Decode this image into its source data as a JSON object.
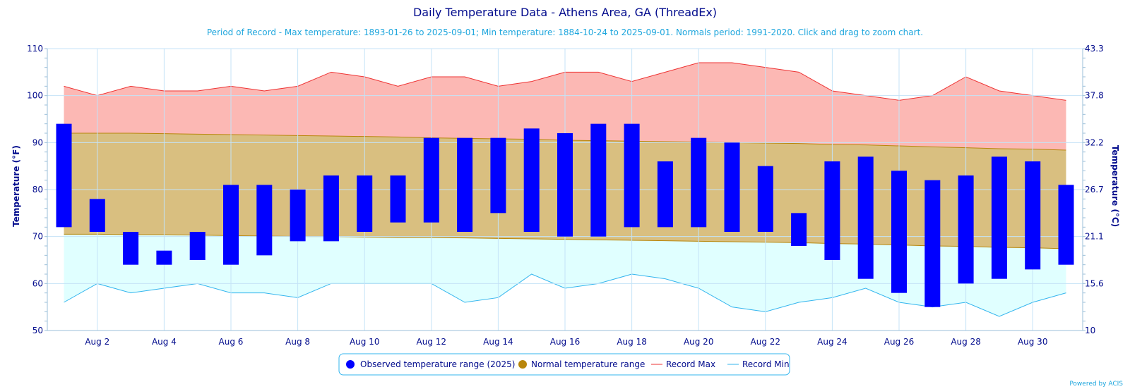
{
  "title": "Daily Temperature Data - Athens Area, GA (ThreadEx)",
  "subtitle": "Period of Record - Max temperature: 1893-01-26 to 2025-09-01; Min temperature: 1884-10-24 to 2025-09-01. Normals period: 1991-2020. Click and drag to zoom chart.",
  "credit": "Powered by ACIS",
  "colors": {
    "observed": "#0000ff",
    "normal_fill": "#d9bf80",
    "normal_line": "#b8860b",
    "record_max_fill": "#fcb8b4",
    "record_max_line": "#ee3333",
    "record_min_fill": "#e0ffff",
    "record_min_line": "#33b5ee",
    "grid": "#c4e3f7",
    "text": "#000a8c"
  },
  "chart_data": {
    "type": "bar",
    "title": "Daily Temperature Data - Athens Area, GA (ThreadEx)",
    "ylabel_left": "Temperature (°F)",
    "ylabel_right": "Temperature (°C)",
    "ylim": [
      50,
      110
    ],
    "yticks_left": [
      "50",
      "60",
      "70",
      "80",
      "90",
      "100",
      "110"
    ],
    "yticks_right": [
      "10",
      "15.6",
      "21.1",
      "26.7",
      "32.2",
      "37.8",
      "43.3"
    ],
    "days": [
      1,
      2,
      3,
      4,
      5,
      6,
      7,
      8,
      9,
      10,
      11,
      12,
      13,
      14,
      15,
      16,
      17,
      18,
      19,
      20,
      21,
      22,
      23,
      24,
      25,
      26,
      27,
      28,
      29,
      30,
      31
    ],
    "xtick_labels": [
      {
        "day": 2,
        "label": "Aug 2"
      },
      {
        "day": 4,
        "label": "Aug 4"
      },
      {
        "day": 6,
        "label": "Aug 6"
      },
      {
        "day": 8,
        "label": "Aug 8"
      },
      {
        "day": 10,
        "label": "Aug 10"
      },
      {
        "day": 12,
        "label": "Aug 12"
      },
      {
        "day": 14,
        "label": "Aug 14"
      },
      {
        "day": 16,
        "label": "Aug 16"
      },
      {
        "day": 18,
        "label": "Aug 18"
      },
      {
        "day": 20,
        "label": "Aug 20"
      },
      {
        "day": 22,
        "label": "Aug 22"
      },
      {
        "day": 24,
        "label": "Aug 24"
      },
      {
        "day": 26,
        "label": "Aug 26"
      },
      {
        "day": 28,
        "label": "Aug 28"
      },
      {
        "day": 30,
        "label": "Aug 30"
      }
    ],
    "series": [
      {
        "name": "Observed temperature range (2025)",
        "kind": "range-bar",
        "high": [
          94,
          78,
          71,
          67,
          71,
          81,
          81,
          80,
          83,
          83,
          83,
          91,
          91,
          91,
          93,
          92,
          94,
          94,
          86,
          91,
          90,
          85,
          75,
          86,
          87,
          84,
          82,
          83,
          87,
          86,
          81
        ],
        "low": [
          72,
          71,
          64,
          64,
          65,
          64,
          66,
          69,
          69,
          71,
          73,
          73,
          71,
          75,
          71,
          70,
          70,
          72,
          72,
          72,
          71,
          71,
          68,
          65,
          61,
          58,
          55,
          60,
          61,
          63,
          64
        ]
      },
      {
        "name": "Normal temperature range",
        "kind": "range-area",
        "high": [
          92,
          92,
          92,
          91.9,
          91.8,
          91.7,
          91.6,
          91.5,
          91.4,
          91.3,
          91.2,
          91,
          90.9,
          90.8,
          90.7,
          90.5,
          90.4,
          90.3,
          90.2,
          90.1,
          90,
          89.9,
          89.8,
          89.6,
          89.5,
          89.3,
          89.1,
          88.9,
          88.7,
          88.6,
          88.4
        ],
        "low": [
          70.5,
          70.5,
          70.4,
          70.4,
          70.3,
          70.2,
          70.1,
          70,
          70,
          69.9,
          69.8,
          69.8,
          69.7,
          69.6,
          69.5,
          69.4,
          69.3,
          69.2,
          69.1,
          69,
          68.9,
          68.8,
          68.7,
          68.5,
          68.4,
          68.2,
          68,
          67.9,
          67.7,
          67.6,
          67.4
        ]
      },
      {
        "name": "Record Max",
        "kind": "line",
        "values": [
          102,
          100,
          102,
          101,
          101,
          102,
          101,
          102,
          105,
          104,
          102,
          104,
          104,
          102,
          103,
          105,
          105,
          103,
          105,
          107,
          107,
          106,
          105,
          101,
          100,
          99,
          100,
          104,
          101,
          100,
          99
        ]
      },
      {
        "name": "Record Min",
        "kind": "line",
        "values": [
          56,
          60,
          58,
          59,
          60,
          58,
          58,
          57,
          60,
          60,
          60,
          60,
          56,
          57,
          62,
          59,
          60,
          62,
          61,
          59,
          55,
          54,
          56,
          57,
          59,
          56,
          55,
          56,
          53,
          56,
          58
        ]
      }
    ]
  }
}
